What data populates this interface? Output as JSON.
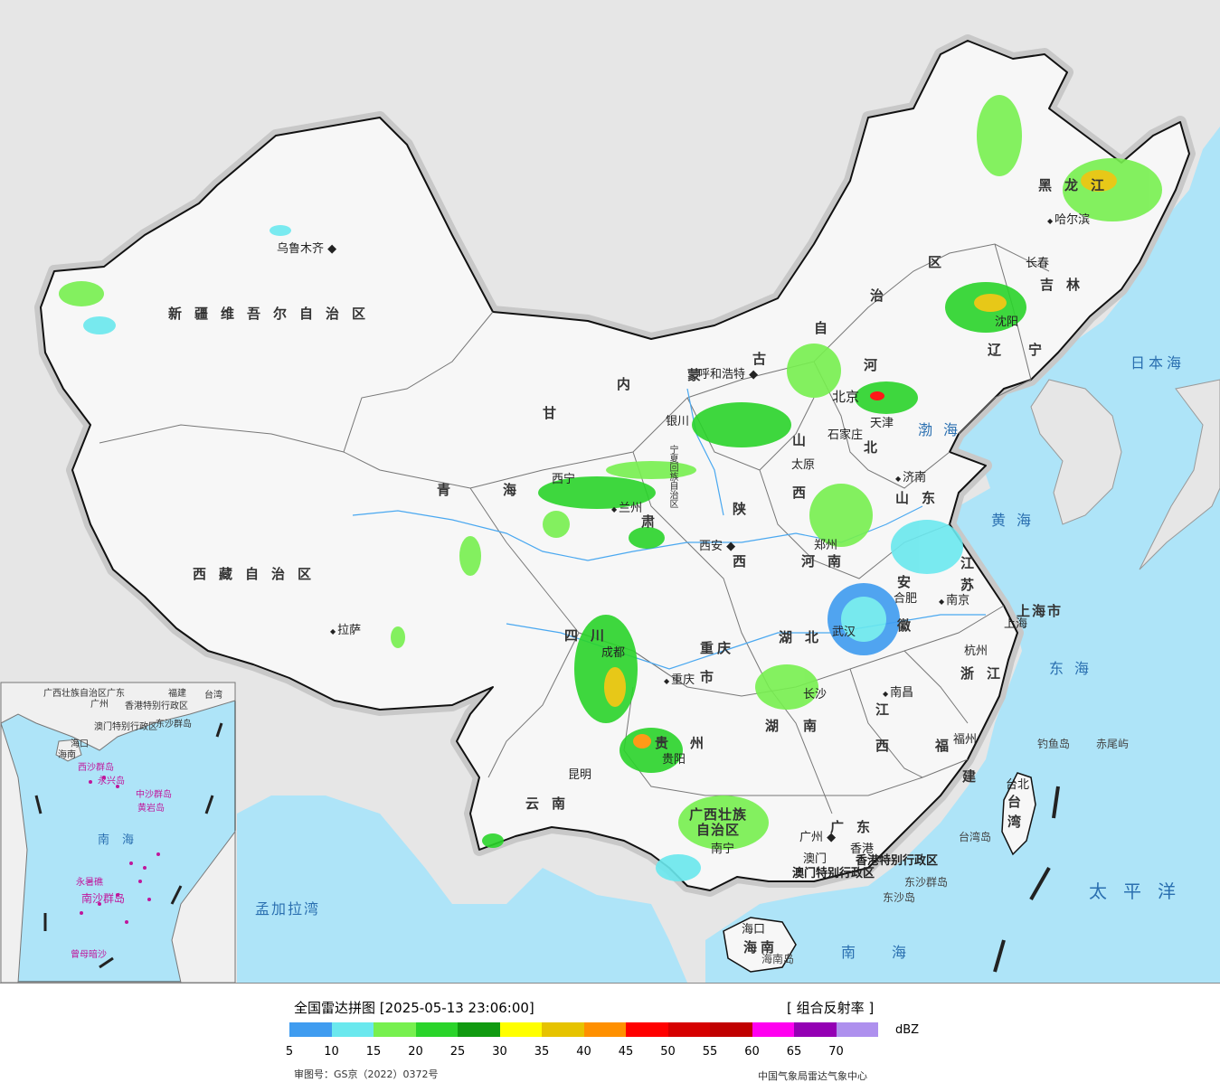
{
  "map": {
    "provinces": [
      {
        "id": "xinjiang",
        "name": "新疆维吾尔自治区"
      },
      {
        "id": "xizang",
        "name": "西藏自治区"
      },
      {
        "id": "qinghai1",
        "name": "青"
      },
      {
        "id": "qinghai2",
        "name": "海"
      },
      {
        "id": "gansu1",
        "name": "甘"
      },
      {
        "id": "gansu2",
        "name": "肃"
      },
      {
        "id": "neimenggu1",
        "name": "内"
      },
      {
        "id": "neimenggu2",
        "name": "蒙"
      },
      {
        "id": "neimenggu3",
        "name": "古"
      },
      {
        "id": "neimenggu4",
        "name": "自"
      },
      {
        "id": "neimenggu5",
        "name": "治"
      },
      {
        "id": "neimenggu6",
        "name": "区"
      },
      {
        "id": "heilongjiang",
        "name": "黑龙江"
      },
      {
        "id": "jilin",
        "name": "吉林"
      },
      {
        "id": "liaoning1",
        "name": "辽"
      },
      {
        "id": "liaoning2",
        "name": "宁"
      },
      {
        "id": "hebei1",
        "name": "河"
      },
      {
        "id": "hebei2",
        "name": "北"
      },
      {
        "id": "shanxi1",
        "name": "山"
      },
      {
        "id": "shanxi2",
        "name": "西"
      },
      {
        "id": "shaanxi1",
        "name": "陕"
      },
      {
        "id": "shaanxi2",
        "name": "西"
      },
      {
        "id": "shandong",
        "name": "山东"
      },
      {
        "id": "henan",
        "name": "河南"
      },
      {
        "id": "jiangsu1",
        "name": "江"
      },
      {
        "id": "jiangsu2",
        "name": "苏"
      },
      {
        "id": "anhui1",
        "name": "安"
      },
      {
        "id": "anhui2",
        "name": "徽"
      },
      {
        "id": "shanghai",
        "name": "上海市"
      },
      {
        "id": "zhejiang",
        "name": "浙江"
      },
      {
        "id": "hubei",
        "name": "湖北"
      },
      {
        "id": "sichuan",
        "name": "四川"
      },
      {
        "id": "chongqing1",
        "name": "重庆"
      },
      {
        "id": "chongqing2",
        "name": "市"
      },
      {
        "id": "hunan1",
        "name": "湖"
      },
      {
        "id": "hunan2",
        "name": "南"
      },
      {
        "id": "jiangxi1",
        "name": "江"
      },
      {
        "id": "jiangxi2",
        "name": "西"
      },
      {
        "id": "fujian1",
        "name": "福"
      },
      {
        "id": "fujian2",
        "name": "建"
      },
      {
        "id": "guizhou1",
        "name": "贵"
      },
      {
        "id": "guizhou2",
        "name": "州"
      },
      {
        "id": "yunnan",
        "name": "云南"
      },
      {
        "id": "guangxi1",
        "name": "广西壮族"
      },
      {
        "id": "guangxi2",
        "name": "自治区"
      },
      {
        "id": "guangdong",
        "name": "广东"
      },
      {
        "id": "hainan",
        "name": "海南"
      },
      {
        "id": "taiwan1",
        "name": "台"
      },
      {
        "id": "taiwan2",
        "name": "湾"
      },
      {
        "id": "ningxia",
        "name": "宁夏回族自治区"
      },
      {
        "id": "tianjin",
        "name": "天津"
      },
      {
        "id": "beijing",
        "name": "北京"
      },
      {
        "id": "xianggang",
        "name": "香港特别行政区"
      },
      {
        "id": "aomen",
        "name": "澳门特别行政区"
      }
    ],
    "cities": [
      {
        "id": "urumqi",
        "name": "乌鲁木齐"
      },
      {
        "id": "lhasa",
        "name": "拉萨"
      },
      {
        "id": "xining",
        "name": "西宁"
      },
      {
        "id": "lanzhou",
        "name": "兰州"
      },
      {
        "id": "yinchuan",
        "name": "银川"
      },
      {
        "id": "hohhot",
        "name": "呼和浩特"
      },
      {
        "id": "harbin",
        "name": "哈尔滨"
      },
      {
        "id": "changchun",
        "name": "长春"
      },
      {
        "id": "shenyang",
        "name": "沈阳"
      },
      {
        "id": "shijiazhuang",
        "name": "石家庄"
      },
      {
        "id": "taiyuan",
        "name": "太原"
      },
      {
        "id": "xian",
        "name": "西安"
      },
      {
        "id": "jinan",
        "name": "济南"
      },
      {
        "id": "zhengzhou",
        "name": "郑州"
      },
      {
        "id": "nanjing",
        "name": "南京"
      },
      {
        "id": "hefei",
        "name": "合肥"
      },
      {
        "id": "shanghai_c",
        "name": "上海"
      },
      {
        "id": "hangzhou",
        "name": "杭州"
      },
      {
        "id": "wuhan",
        "name": "武汉"
      },
      {
        "id": "chengdu",
        "name": "成都"
      },
      {
        "id": "chongqing_c",
        "name": "重庆"
      },
      {
        "id": "changsha",
        "name": "长沙"
      },
      {
        "id": "nanchang",
        "name": "南昌"
      },
      {
        "id": "fuzhou",
        "name": "福州"
      },
      {
        "id": "guiyang",
        "name": "贵阳"
      },
      {
        "id": "kunming",
        "name": "昆明"
      },
      {
        "id": "nanning",
        "name": "南宁"
      },
      {
        "id": "guangzhou",
        "name": "广州"
      },
      {
        "id": "macao",
        "name": "澳门"
      },
      {
        "id": "hongkong",
        "name": "香港"
      },
      {
        "id": "haikou",
        "name": "海口"
      },
      {
        "id": "taibei",
        "name": "台北"
      }
    ],
    "seas": [
      {
        "id": "sea_japan",
        "name": "日本海"
      },
      {
        "id": "bohai",
        "name": "渤海"
      },
      {
        "id": "huanghai",
        "name": "黄海"
      },
      {
        "id": "donghai",
        "name": "东海"
      },
      {
        "id": "taipingyang",
        "name": "太平洋"
      },
      {
        "id": "nanhai",
        "name": "南海"
      },
      {
        "id": "mengjiala",
        "name": "孟加拉湾"
      }
    ],
    "islands": [
      {
        "id": "diaoyu",
        "name": "钓鱼岛"
      },
      {
        "id": "chiwei",
        "name": "赤尾屿"
      },
      {
        "id": "taiwan_island",
        "name": "台湾岛"
      },
      {
        "id": "dongsha_qundao",
        "name": "东沙群岛"
      },
      {
        "id": "dongsha_dao",
        "name": "东沙岛"
      },
      {
        "id": "hainan_island",
        "name": "海南岛"
      }
    ],
    "inset": [
      {
        "id": "in_guangxi",
        "name": "广西壮族自治区",
        "pink": false
      },
      {
        "id": "in_guangdong",
        "name": "广东",
        "pink": false
      },
      {
        "id": "in_fujian",
        "name": "福建",
        "pink": false
      },
      {
        "id": "in_taiwan",
        "name": "台湾",
        "pink": false
      },
      {
        "id": "in_guangzhou",
        "name": "广州",
        "pink": false
      },
      {
        "id": "in_xianggang",
        "name": "香港特别行政区",
        "pink": false
      },
      {
        "id": "in_aomen",
        "name": "澳门特别行政区",
        "pink": false
      },
      {
        "id": "in_dongsha",
        "name": "东沙群岛",
        "pink": false
      },
      {
        "id": "in_haikou",
        "name": "海口",
        "pink": false
      },
      {
        "id": "in_hainan",
        "name": "海南",
        "pink": false
      },
      {
        "id": "in_xisha",
        "name": "西沙群岛",
        "pink": true
      },
      {
        "id": "in_yongxing",
        "name": "永兴岛",
        "pink": true
      },
      {
        "id": "in_zhongsha",
        "name": "中沙群岛",
        "pink": true
      },
      {
        "id": "in_huangyan",
        "name": "黄岩岛",
        "pink": true
      },
      {
        "id": "in_nanhai",
        "name": "南海",
        "pink": false
      },
      {
        "id": "in_yongshu",
        "name": "永暑礁",
        "pink": true
      },
      {
        "id": "in_nansha",
        "name": "南沙群岛",
        "pink": true
      },
      {
        "id": "in_zengmu",
        "name": "曾母暗沙",
        "pink": true
      }
    ]
  },
  "legend": {
    "title": "全国雷达拼图 [2025-05-13 23:06:00]",
    "product": "[ 组合反射率 ]",
    "unit": "dBZ",
    "ticks": [
      "5",
      "10",
      "15",
      "20",
      "25",
      "30",
      "35",
      "40",
      "45",
      "50",
      "55",
      "60",
      "65",
      "70"
    ],
    "colors": [
      "#3f9cf0",
      "#6ae8ee",
      "#77f04f",
      "#2ad42a",
      "#109a10",
      "#ffff00",
      "#e6c300",
      "#ff9000",
      "#ff0000",
      "#d60000",
      "#c00000",
      "#ff00f0",
      "#9400b4",
      "#ae90ee"
    ],
    "approval": "审图号：GS京（2022）0372号",
    "source": "中国气象局雷达气象中心"
  }
}
